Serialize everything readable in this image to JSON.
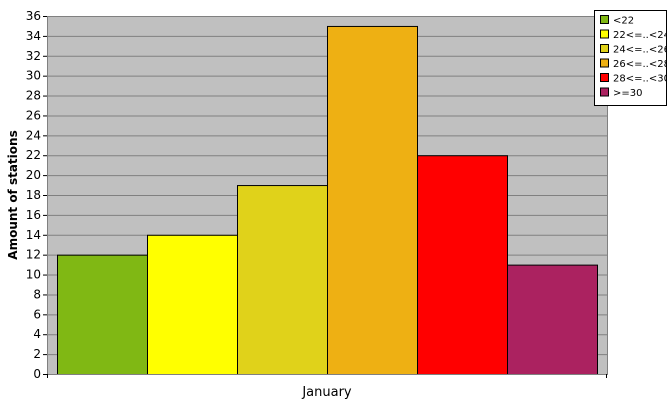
{
  "chart_data": {
    "type": "bar",
    "categories": [
      "January"
    ],
    "series": [
      {
        "name": "<22",
        "values": [
          12
        ],
        "color": "#80b814"
      },
      {
        "name": "22<=..<24",
        "values": [
          14
        ],
        "color": "#ffff00"
      },
      {
        "name": "24<=..<26",
        "values": [
          19
        ],
        "color": "#e0d21a"
      },
      {
        "name": "26<=..<28",
        "values": [
          35
        ],
        "color": "#eeb013"
      },
      {
        "name": "28<=..<30",
        "values": [
          22
        ],
        "color": "#ff0000"
      },
      {
        "name": ">=30",
        "values": [
          11
        ],
        "color": "#ab2260"
      }
    ],
    "ylabel": "Amount of stations",
    "xlabel": "",
    "ylim": [
      0,
      36
    ],
    "yticks": [
      0,
      2,
      4,
      6,
      8,
      10,
      12,
      14,
      16,
      18,
      20,
      22,
      24,
      26,
      28,
      30,
      32,
      34,
      36
    ],
    "grid": true,
    "legend_position": "top-right",
    "plot_background": "#c0c0c0"
  }
}
